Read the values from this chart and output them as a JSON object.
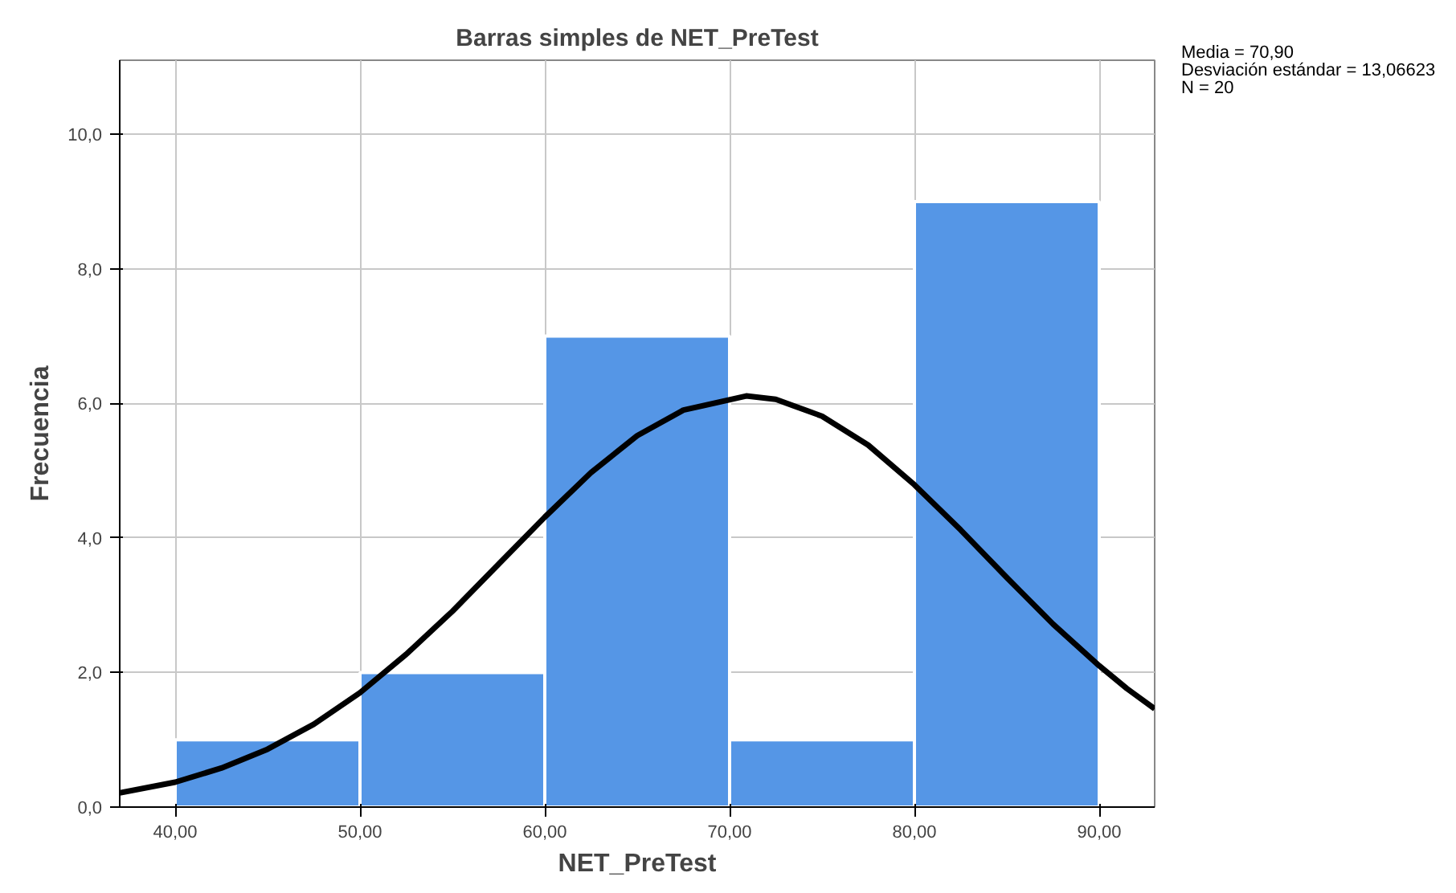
{
  "chart_data": {
    "type": "histogram",
    "title": "Barras simples de NET_PreTest",
    "xlabel": "NET_PreTest",
    "ylabel": "Frecuencia",
    "annotations": [
      "Media = 70,90",
      "Desviación estándar = 13,06623",
      "N = 20"
    ],
    "xlim": [
      37,
      93
    ],
    "ylim": [
      0,
      11.1
    ],
    "xticks": [
      {
        "value": 40,
        "label": "40,00"
      },
      {
        "value": 50,
        "label": "50,00"
      },
      {
        "value": 60,
        "label": "60,00"
      },
      {
        "value": 70,
        "label": "70,00"
      },
      {
        "value": 80,
        "label": "80,00"
      },
      {
        "value": 90,
        "label": "90,00"
      }
    ],
    "yticks": [
      {
        "value": 0,
        "label": "0,0"
      },
      {
        "value": 2,
        "label": "2,0"
      },
      {
        "value": 4,
        "label": "4,0"
      },
      {
        "value": 6,
        "label": "6,0"
      },
      {
        "value": 8,
        "label": "8,0"
      },
      {
        "value": 10,
        "label": "10,0"
      }
    ],
    "grid": true,
    "series": [
      {
        "color": "#5596e6",
        "bins": [
          40,
          50,
          60,
          70,
          80,
          90
        ],
        "values": [
          1,
          2,
          7,
          1,
          9
        ]
      },
      {
        "type": "line",
        "color": "#000000",
        "x": [
          37,
          40,
          42.5,
          45,
          47.5,
          50,
          52.5,
          55,
          57.5,
          60,
          62.5,
          65,
          67.5,
          70.9,
          72.5,
          75,
          77.5,
          80,
          82.5,
          85,
          87.5,
          90,
          91.5,
          93
        ],
        "values": [
          0.21,
          0.37,
          0.58,
          0.86,
          1.23,
          1.7,
          2.27,
          2.91,
          3.61,
          4.31,
          4.97,
          5.52,
          5.9,
          6.11,
          6.06,
          5.81,
          5.38,
          4.79,
          4.12,
          3.41,
          2.72,
          2.1,
          1.76,
          1.46
        ]
      }
    ]
  }
}
